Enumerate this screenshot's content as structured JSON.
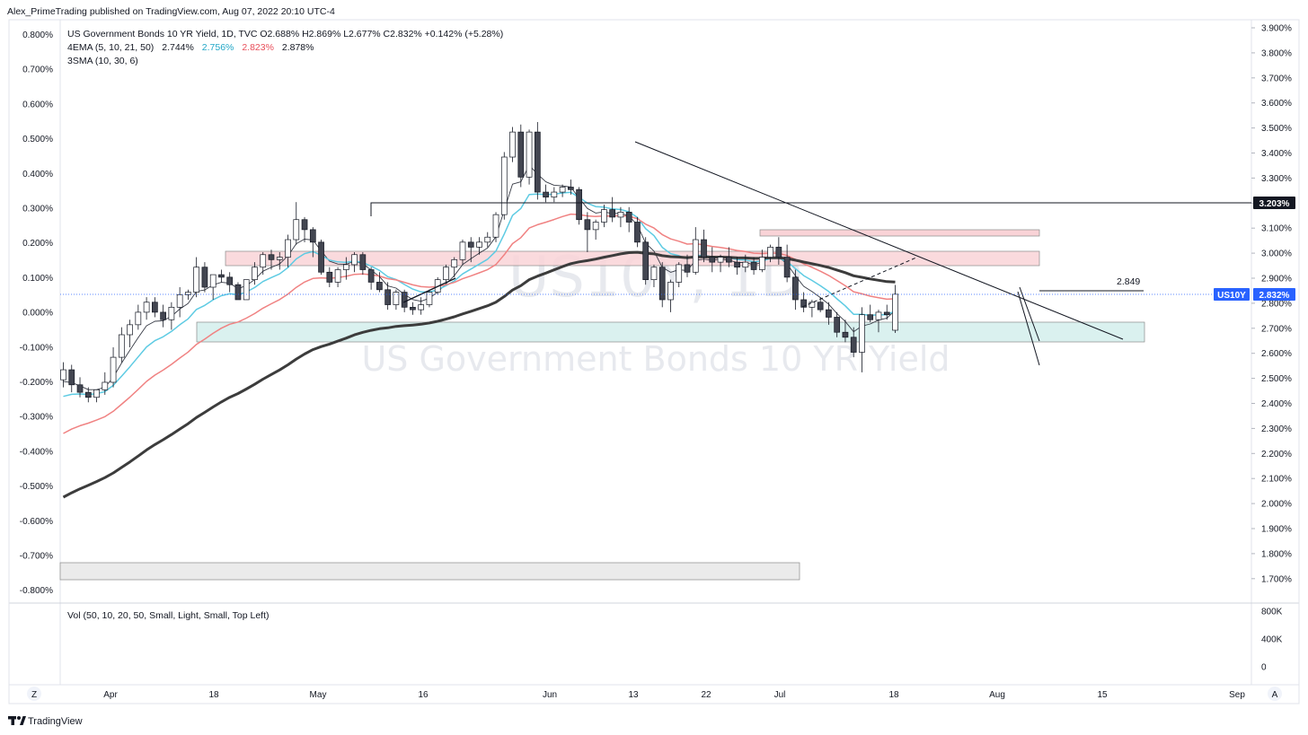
{
  "header": {
    "published_by": "Alex_PrimeTrading published on TradingView.com, Aug 07, 2022 20:10 UTC-4"
  },
  "legend": {
    "symbol_line": "US Government Bonds 10 YR Yield, 1D, TVC  O2.688%  H2.869%  L2.677%  C2.832%  +0.142%  (+5.28%)",
    "ema_label": "4EMA (5, 10, 21, 50)",
    "ema_values": [
      "2.744%",
      "2.756%",
      "2.823%",
      "2.878%"
    ],
    "sma_label": "3SMA (10, 30, 6)",
    "vol_label": "Vol (50, 10, 20, 50, Small, Light, Small, Top Left)"
  },
  "watermark": {
    "symbol": "US10Y, 1D",
    "name": "US Government Bonds 10 YR Yield"
  },
  "footer": {
    "brand": "TradingView",
    "z_button": "Z",
    "a_button": "A"
  },
  "colors": {
    "up": "#ffffff",
    "down": "#434651",
    "ema5": "#363a45",
    "ema10": "#5ecbe3",
    "ema21": "#f08282",
    "ema50": "#3c3c3c",
    "price_tag": "#2962ff",
    "level_tag": "#131722",
    "pink_zone": "#f9d3d7",
    "teal_zone": "#d4efec",
    "grey_zone": "#ebebeb"
  },
  "chart_data": {
    "type": "candlestick",
    "symbol": "US10Y",
    "timeframe": "1D",
    "last_price": "2.832%",
    "level_label": "3.203%",
    "annotation_label": "2.849",
    "left_axis_ticks": [
      "0.800%",
      "0.700%",
      "0.600%",
      "0.500%",
      "0.400%",
      "0.300%",
      "0.200%",
      "0.100%",
      "0.000%",
      "-0.100%",
      "-0.200%",
      "-0.300%",
      "-0.400%",
      "-0.500%",
      "-0.600%",
      "-0.700%",
      "-0.800%"
    ],
    "right_axis_ticks": [
      "3.900%",
      "3.800%",
      "3.700%",
      "3.600%",
      "3.500%",
      "3.400%",
      "3.300%",
      "3.200%",
      "3.100%",
      "3.000%",
      "2.900%",
      "2.800%",
      "2.700%",
      "2.600%",
      "2.500%",
      "2.400%",
      "2.300%",
      "2.200%",
      "2.100%",
      "2.000%",
      "1.900%",
      "1.800%",
      "1.700%"
    ],
    "volume_ticks": [
      "800K",
      "400K",
      "0"
    ],
    "x_ticks": [
      "Apr",
      "18",
      "May",
      "16",
      "Jun",
      "13",
      "22",
      "Jul",
      "18",
      "Aug",
      "15",
      "Sep"
    ],
    "y_range": [
      1.68,
      3.92
    ],
    "candles": [
      {
        "o": 2.49,
        "h": 2.56,
        "l": 2.46,
        "c": 2.53
      },
      {
        "o": 2.53,
        "h": 2.55,
        "l": 2.44,
        "c": 2.47
      },
      {
        "o": 2.47,
        "h": 2.5,
        "l": 2.42,
        "c": 2.44
      },
      {
        "o": 2.44,
        "h": 2.46,
        "l": 2.4,
        "c": 2.42
      },
      {
        "o": 2.42,
        "h": 2.45,
        "l": 2.4,
        "c": 2.45
      },
      {
        "o": 2.45,
        "h": 2.52,
        "l": 2.43,
        "c": 2.48
      },
      {
        "o": 2.48,
        "h": 2.62,
        "l": 2.46,
        "c": 2.58
      },
      {
        "o": 2.58,
        "h": 2.7,
        "l": 2.56,
        "c": 2.67
      },
      {
        "o": 2.67,
        "h": 2.73,
        "l": 2.62,
        "c": 2.71
      },
      {
        "o": 2.71,
        "h": 2.79,
        "l": 2.69,
        "c": 2.76
      },
      {
        "o": 2.76,
        "h": 2.82,
        "l": 2.73,
        "c": 2.8
      },
      {
        "o": 2.8,
        "h": 2.82,
        "l": 2.74,
        "c": 2.76
      },
      {
        "o": 2.76,
        "h": 2.79,
        "l": 2.7,
        "c": 2.73
      },
      {
        "o": 2.73,
        "h": 2.8,
        "l": 2.69,
        "c": 2.78
      },
      {
        "o": 2.78,
        "h": 2.86,
        "l": 2.74,
        "c": 2.83
      },
      {
        "o": 2.83,
        "h": 2.85,
        "l": 2.81,
        "c": 2.84
      },
      {
        "o": 2.84,
        "h": 2.98,
        "l": 2.82,
        "c": 2.94
      },
      {
        "o": 2.94,
        "h": 2.96,
        "l": 2.84,
        "c": 2.86
      },
      {
        "o": 2.86,
        "h": 2.91,
        "l": 2.81,
        "c": 2.91
      },
      {
        "o": 2.91,
        "h": 2.93,
        "l": 2.88,
        "c": 2.9
      },
      {
        "o": 2.9,
        "h": 2.92,
        "l": 2.84,
        "c": 2.87
      },
      {
        "o": 2.87,
        "h": 2.88,
        "l": 2.81,
        "c": 2.81
      },
      {
        "o": 2.81,
        "h": 2.89,
        "l": 2.81,
        "c": 2.89
      },
      {
        "o": 2.89,
        "h": 2.96,
        "l": 2.87,
        "c": 2.94
      },
      {
        "o": 2.94,
        "h": 3.0,
        "l": 2.91,
        "c": 2.99
      },
      {
        "o": 2.99,
        "h": 3.01,
        "l": 2.93,
        "c": 2.97
      },
      {
        "o": 2.97,
        "h": 3.0,
        "l": 2.93,
        "c": 2.98
      },
      {
        "o": 2.98,
        "h": 3.07,
        "l": 2.94,
        "c": 3.05
      },
      {
        "o": 3.05,
        "h": 3.2,
        "l": 3.03,
        "c": 3.13
      },
      {
        "o": 3.13,
        "h": 3.14,
        "l": 3.04,
        "c": 3.09
      },
      {
        "o": 3.09,
        "h": 3.1,
        "l": 2.98,
        "c": 3.04
      },
      {
        "o": 3.04,
        "h": 3.05,
        "l": 2.91,
        "c": 2.92
      },
      {
        "o": 2.92,
        "h": 2.94,
        "l": 2.86,
        "c": 2.88
      },
      {
        "o": 2.88,
        "h": 2.94,
        "l": 2.86,
        "c": 2.93
      },
      {
        "o": 2.93,
        "h": 2.98,
        "l": 2.89,
        "c": 2.95
      },
      {
        "o": 2.95,
        "h": 3.0,
        "l": 2.92,
        "c": 2.99
      },
      {
        "o": 2.99,
        "h": 3.0,
        "l": 2.91,
        "c": 2.93
      },
      {
        "o": 2.93,
        "h": 2.94,
        "l": 2.85,
        "c": 2.88
      },
      {
        "o": 2.88,
        "h": 2.92,
        "l": 2.84,
        "c": 2.85
      },
      {
        "o": 2.85,
        "h": 2.88,
        "l": 2.77,
        "c": 2.79
      },
      {
        "o": 2.79,
        "h": 2.85,
        "l": 2.77,
        "c": 2.84
      },
      {
        "o": 2.84,
        "h": 2.85,
        "l": 2.76,
        "c": 2.78
      },
      {
        "o": 2.78,
        "h": 2.8,
        "l": 2.75,
        "c": 2.77
      },
      {
        "o": 2.77,
        "h": 2.82,
        "l": 2.75,
        "c": 2.79
      },
      {
        "o": 2.79,
        "h": 2.85,
        "l": 2.78,
        "c": 2.84
      },
      {
        "o": 2.84,
        "h": 2.9,
        "l": 2.83,
        "c": 2.89
      },
      {
        "o": 2.89,
        "h": 2.95,
        "l": 2.88,
        "c": 2.94
      },
      {
        "o": 2.94,
        "h": 2.98,
        "l": 2.9,
        "c": 2.97
      },
      {
        "o": 2.97,
        "h": 3.05,
        "l": 2.95,
        "c": 3.04
      },
      {
        "o": 3.04,
        "h": 3.06,
        "l": 2.96,
        "c": 3.02
      },
      {
        "o": 3.02,
        "h": 3.06,
        "l": 2.99,
        "c": 3.04
      },
      {
        "o": 3.04,
        "h": 3.08,
        "l": 3.02,
        "c": 3.06
      },
      {
        "o": 3.06,
        "h": 3.16,
        "l": 3.04,
        "c": 3.15
      },
      {
        "o": 3.15,
        "h": 3.4,
        "l": 3.13,
        "c": 3.38
      },
      {
        "o": 3.38,
        "h": 3.5,
        "l": 3.36,
        "c": 3.48
      },
      {
        "o": 3.48,
        "h": 3.51,
        "l": 3.26,
        "c": 3.3
      },
      {
        "o": 3.3,
        "h": 3.49,
        "l": 3.27,
        "c": 3.48
      },
      {
        "o": 3.48,
        "h": 3.52,
        "l": 3.21,
        "c": 3.24
      },
      {
        "o": 3.24,
        "h": 3.27,
        "l": 3.2,
        "c": 3.22
      },
      {
        "o": 3.22,
        "h": 3.26,
        "l": 3.2,
        "c": 3.24
      },
      {
        "o": 3.24,
        "h": 3.27,
        "l": 3.22,
        "c": 3.26
      },
      {
        "o": 3.26,
        "h": 3.29,
        "l": 3.23,
        "c": 3.25
      },
      {
        "o": 3.25,
        "h": 3.26,
        "l": 3.11,
        "c": 3.13
      },
      {
        "o": 3.13,
        "h": 3.16,
        "l": 3.0,
        "c": 3.09
      },
      {
        "o": 3.09,
        "h": 3.13,
        "l": 3.05,
        "c": 3.12
      },
      {
        "o": 3.12,
        "h": 3.19,
        "l": 3.1,
        "c": 3.17
      },
      {
        "o": 3.17,
        "h": 3.22,
        "l": 3.12,
        "c": 3.14
      },
      {
        "o": 3.14,
        "h": 3.18,
        "l": 3.1,
        "c": 3.16
      },
      {
        "o": 3.16,
        "h": 3.18,
        "l": 3.08,
        "c": 3.12
      },
      {
        "o": 3.12,
        "h": 3.14,
        "l": 3.02,
        "c": 3.04
      },
      {
        "o": 3.04,
        "h": 3.06,
        "l": 2.87,
        "c": 2.89
      },
      {
        "o": 2.89,
        "h": 2.95,
        "l": 2.86,
        "c": 2.94
      },
      {
        "o": 2.94,
        "h": 2.96,
        "l": 2.78,
        "c": 2.81
      },
      {
        "o": 2.81,
        "h": 2.89,
        "l": 2.76,
        "c": 2.88
      },
      {
        "o": 2.88,
        "h": 2.96,
        "l": 2.86,
        "c": 2.95
      },
      {
        "o": 2.95,
        "h": 2.99,
        "l": 2.9,
        "c": 2.92
      },
      {
        "o": 2.92,
        "h": 3.1,
        "l": 2.91,
        "c": 3.05
      },
      {
        "o": 3.05,
        "h": 3.09,
        "l": 2.96,
        "c": 2.98
      },
      {
        "o": 2.98,
        "h": 3.02,
        "l": 2.92,
        "c": 2.96
      },
      {
        "o": 2.96,
        "h": 2.99,
        "l": 2.92,
        "c": 2.98
      },
      {
        "o": 2.98,
        "h": 3.02,
        "l": 2.94,
        "c": 2.96
      },
      {
        "o": 2.96,
        "h": 2.98,
        "l": 2.91,
        "c": 2.94
      },
      {
        "o": 2.94,
        "h": 2.99,
        "l": 2.92,
        "c": 2.96
      },
      {
        "o": 2.96,
        "h": 2.98,
        "l": 2.91,
        "c": 2.93
      },
      {
        "o": 2.93,
        "h": 3.01,
        "l": 2.92,
        "c": 2.98
      },
      {
        "o": 2.98,
        "h": 3.03,
        "l": 2.96,
        "c": 3.02
      },
      {
        "o": 3.02,
        "h": 3.06,
        "l": 2.95,
        "c": 2.98
      },
      {
        "o": 2.98,
        "h": 3.03,
        "l": 2.88,
        "c": 2.9
      },
      {
        "o": 2.9,
        "h": 2.93,
        "l": 2.77,
        "c": 2.81
      },
      {
        "o": 2.81,
        "h": 2.84,
        "l": 2.76,
        "c": 2.78
      },
      {
        "o": 2.78,
        "h": 2.81,
        "l": 2.74,
        "c": 2.8
      },
      {
        "o": 2.8,
        "h": 2.82,
        "l": 2.76,
        "c": 2.77
      },
      {
        "o": 2.77,
        "h": 2.8,
        "l": 2.71,
        "c": 2.74
      },
      {
        "o": 2.74,
        "h": 2.76,
        "l": 2.66,
        "c": 2.68
      },
      {
        "o": 2.68,
        "h": 2.73,
        "l": 2.64,
        "c": 2.66
      },
      {
        "o": 2.66,
        "h": 2.7,
        "l": 2.58,
        "c": 2.6
      },
      {
        "o": 2.6,
        "h": 2.78,
        "l": 2.52,
        "c": 2.75
      },
      {
        "o": 2.75,
        "h": 2.79,
        "l": 2.72,
        "c": 2.73
      },
      {
        "o": 2.73,
        "h": 2.77,
        "l": 2.68,
        "c": 2.76
      },
      {
        "o": 2.76,
        "h": 2.79,
        "l": 2.73,
        "c": 2.75
      },
      {
        "o": 2.688,
        "h": 2.869,
        "l": 2.677,
        "c": 2.832
      }
    ],
    "ema": [
      {
        "name": "EMA 5",
        "period": 5,
        "color": "#363a45",
        "width": 0.9
      },
      {
        "name": "EMA 10",
        "period": 10,
        "color": "#5ecbe3",
        "width": 1.5
      },
      {
        "name": "EMA 21",
        "period": 21,
        "color": "#f08282",
        "width": 1.5
      },
      {
        "name": "EMA 50",
        "period": 50,
        "color": "#3c3c3c",
        "width": 3
      }
    ]
  }
}
